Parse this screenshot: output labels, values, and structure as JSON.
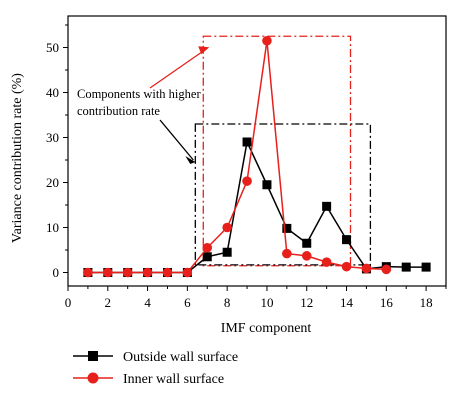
{
  "chart_data": {
    "type": "line",
    "xlabel": "IMF component",
    "ylabel": "Variance contribution rate (%)",
    "xlim": [
      0,
      19
    ],
    "ylim": [
      -3,
      57
    ],
    "xticks": [
      0,
      2,
      4,
      6,
      8,
      10,
      12,
      14,
      16,
      18
    ],
    "yticks": [
      0,
      10,
      20,
      30,
      40,
      50
    ],
    "grid": false,
    "legend_position": "bottom-left, below plot",
    "series": [
      {
        "name": "Outside wall surface",
        "color": "#000000",
        "marker": "square",
        "x": [
          1,
          2,
          3,
          4,
          5,
          6,
          7,
          8,
          9,
          10,
          11,
          12,
          13,
          14,
          15,
          16,
          17,
          18
        ],
        "y": [
          0,
          0,
          0,
          0,
          0,
          0,
          3.5,
          4.5,
          29,
          19.5,
          9.8,
          6.5,
          14.7,
          7.3,
          0.8,
          1.3,
          1.2,
          1.2
        ]
      },
      {
        "name": "Inner wall surface",
        "color": "#e8201c",
        "marker": "circle",
        "x": [
          1,
          2,
          3,
          4,
          5,
          6,
          7,
          8,
          9,
          10,
          11,
          12,
          13,
          14,
          15,
          16
        ],
        "y": [
          0,
          0,
          0,
          0,
          0,
          0,
          5.5,
          10,
          20.3,
          51.5,
          4.2,
          3.7,
          2.3,
          1.3,
          0.9,
          0.7
        ]
      }
    ],
    "annotation": {
      "text_line1": "Components with higher",
      "text_line2": "contribution rate",
      "red_box_x": [
        6.8,
        14.2
      ],
      "red_box_y": [
        1.5,
        52.5
      ],
      "black_box_x": [
        6.4,
        15.2
      ],
      "black_box_y": [
        1.7,
        33
      ]
    }
  }
}
